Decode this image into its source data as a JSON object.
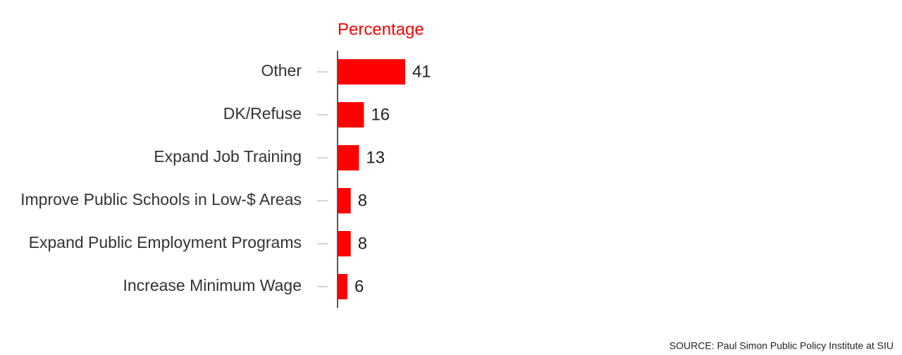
{
  "chart_data": {
    "type": "bar",
    "orientation": "horizontal",
    "title": "Percentage",
    "categories": [
      "Other",
      "DK/Refuse",
      "Expand Job Training",
      "Improve Public Schools in Low-$ Areas",
      "Expand Public Employment Programs",
      "Increase Minimum Wage"
    ],
    "values": [
      41,
      16,
      13,
      8,
      8,
      6
    ],
    "color": "#ff0000",
    "source": "SOURCE: Paul Simon Public Policy Institute at SIU"
  }
}
